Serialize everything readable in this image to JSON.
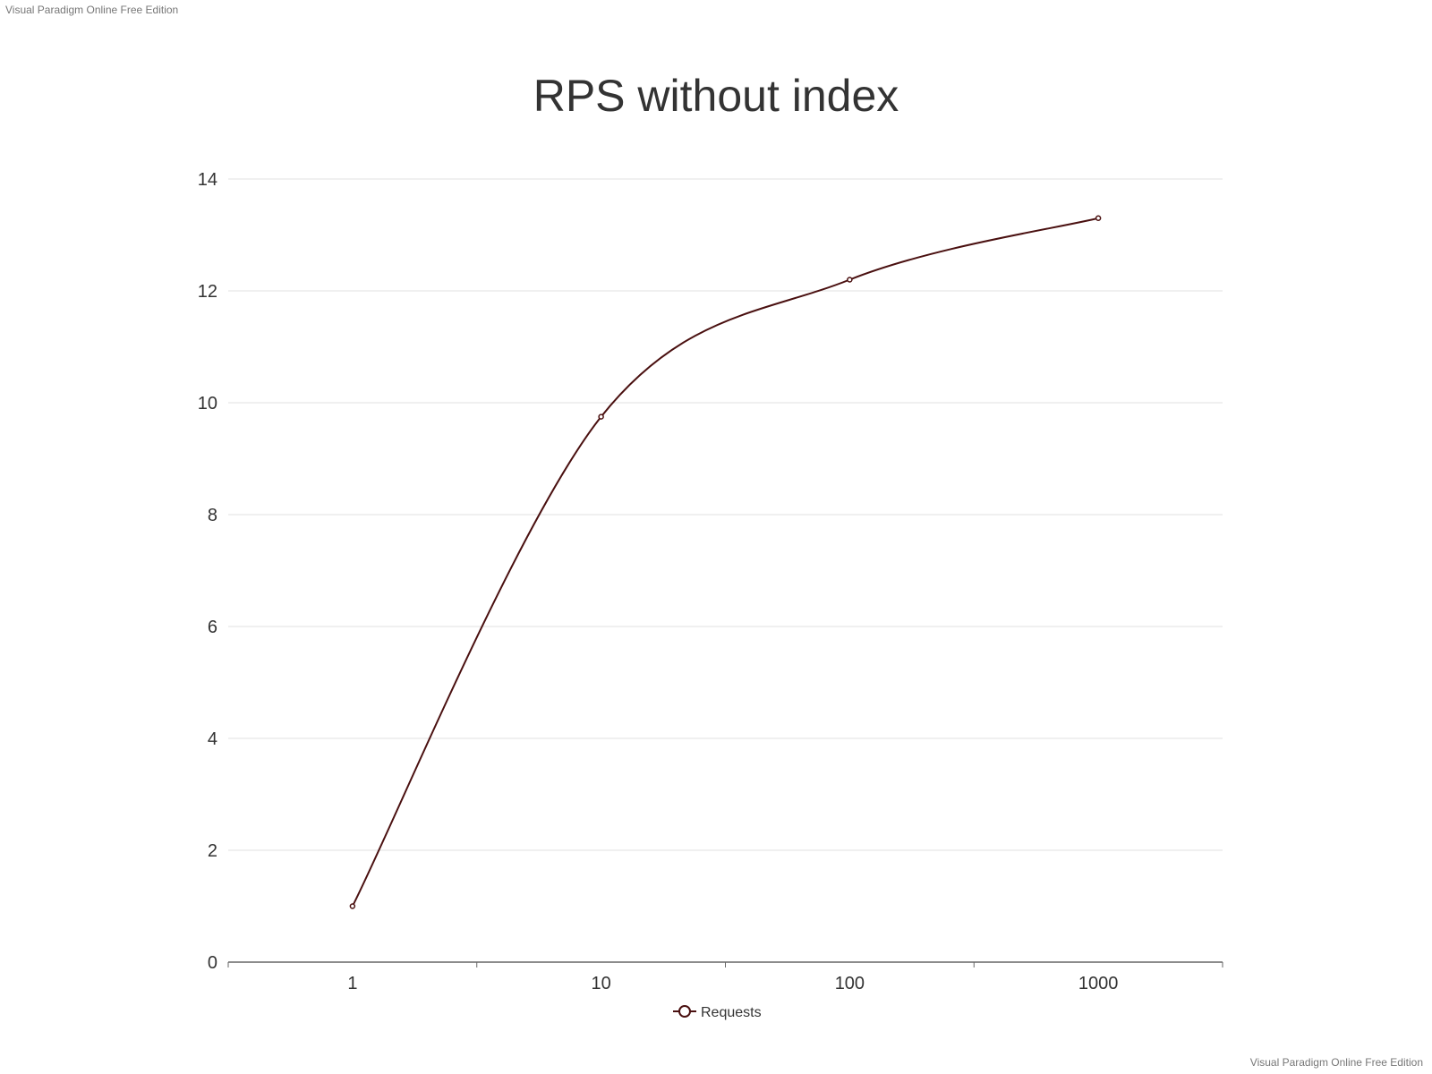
{
  "watermark_top": "Visual Paradigm Online Free Edition",
  "watermark_bottom": "Visual Paradigm Online Free Edition",
  "colors": {
    "series": "#4a1010",
    "grid": "#e0e0e0",
    "axis": "#666666",
    "text": "#333333"
  },
  "chart_data": {
    "type": "line",
    "title": "RPS without index",
    "xlabel": "",
    "ylabel": "",
    "categories": [
      "1",
      "10",
      "100",
      "1000"
    ],
    "series": [
      {
        "name": "Requests",
        "values": [
          1.0,
          9.75,
          12.2,
          13.3
        ]
      }
    ],
    "ylim": [
      0,
      14
    ],
    "yticks": [
      "0",
      "2",
      "4",
      "6",
      "8",
      "10",
      "12",
      "14"
    ],
    "grid": true,
    "smooth": true,
    "legend": "bottom-center"
  }
}
